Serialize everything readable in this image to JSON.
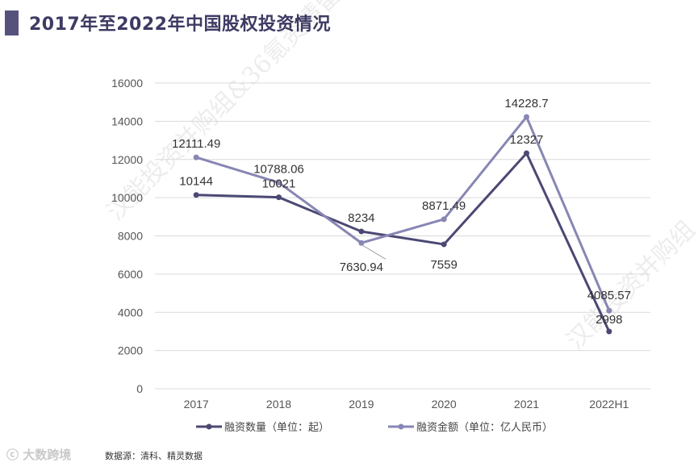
{
  "title": "2017年至2022年中国股权投资情况",
  "source_text": "数据源：清科、精灵数据",
  "logo_text": "大数跨境",
  "watermark_text": "汉能投资并购组&36氪资情留言板",
  "watermark_text_2": "汉能投资并购组",
  "colors": {
    "series1": "#4b4874",
    "series2": "#8786b4",
    "title": "#3d3b63",
    "grid": "#d9d9d9"
  },
  "chart_data": {
    "type": "line",
    "categories": [
      "2017",
      "2018",
      "2019",
      "2020",
      "2021",
      "2022H1"
    ],
    "series": [
      {
        "name": "融资数量（单位：起）",
        "values": [
          10144,
          10021,
          8234,
          7559,
          12327,
          2998
        ],
        "labels": [
          "10144",
          "10021",
          "8234",
          "7559",
          "12327",
          "2998"
        ]
      },
      {
        "name": "融资金额（单位：亿人民币）",
        "values": [
          12111.49,
          10788.06,
          7630.94,
          8871.49,
          14228.7,
          4085.57
        ],
        "labels": [
          "12111.49",
          "10788.06",
          "7630.94",
          "8871.49",
          "14228.7",
          "4085.57"
        ]
      }
    ],
    "yticks": [
      "0",
      "2000",
      "4000",
      "6000",
      "8000",
      "10000",
      "12000",
      "14000",
      "16000"
    ],
    "ylim": [
      0,
      16000
    ],
    "grid": true,
    "legend": "bottom"
  }
}
